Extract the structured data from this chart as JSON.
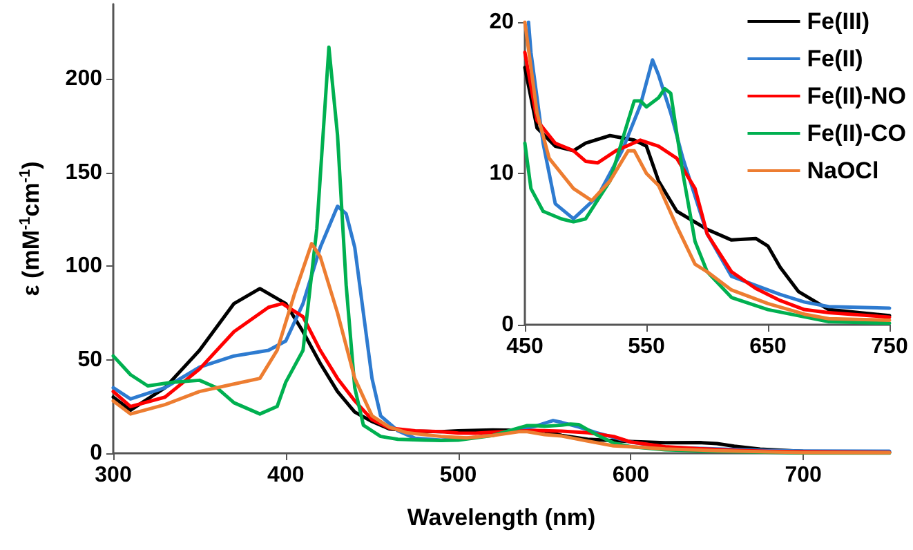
{
  "chart_data": [
    {
      "type": "line",
      "xlabel": "Wavelength (nm)",
      "ylabel": "ε (mM$^{-1}$cm$^{-1}$)",
      "xlim": [
        300,
        750
      ],
      "ylim": [
        0,
        240
      ],
      "xticks": [
        300,
        400,
        500,
        600,
        700
      ],
      "yticks": [
        0,
        50,
        100,
        150,
        200
      ],
      "grid": false,
      "legend": false,
      "line_style": "solid",
      "series": [
        {
          "color": "#000000",
          "x": [
            300,
            310,
            330,
            350,
            370,
            385,
            400,
            410,
            420,
            430,
            440,
            450,
            460,
            475,
            490,
            500,
            520,
            540,
            550,
            560,
            575,
            600,
            620,
            640,
            650,
            660,
            675,
            700,
            750
          ],
          "values": [
            30,
            23,
            35,
            55,
            80,
            88,
            80,
            65,
            48,
            33,
            22,
            17,
            13,
            11.8,
            11.5,
            12,
            12.5,
            12.2,
            11.8,
            9.5,
            7.5,
            6.3,
            5.6,
            5.7,
            5.2,
            3.8,
            2.2,
            1,
            0.6
          ]
        },
        {
          "color": "#2e7bd0",
          "x": [
            300,
            310,
            330,
            350,
            370,
            390,
            400,
            410,
            420,
            430,
            435,
            440,
            445,
            450,
            455,
            465,
            475,
            490,
            510,
            530,
            545,
            555,
            560,
            570,
            580,
            600,
            620,
            640,
            660,
            680,
            700,
            750
          ],
          "values": [
            35,
            29,
            35,
            46,
            52,
            55,
            60,
            80,
            110,
            132,
            128,
            110,
            75,
            40,
            20,
            12,
            8,
            7,
            8.5,
            11.5,
            14.5,
            17.5,
            16.5,
            14,
            11,
            6,
            3.2,
            2.6,
            2,
            1.5,
            1.2,
            1.1
          ]
        },
        {
          "color": "#ff0000",
          "x": [
            300,
            310,
            330,
            350,
            370,
            390,
            398,
            410,
            420,
            430,
            440,
            450,
            460,
            475,
            490,
            500,
            510,
            525,
            545,
            560,
            575,
            590,
            600,
            620,
            640,
            660,
            680,
            700,
            750
          ],
          "values": [
            33,
            25,
            30,
            45,
            65,
            78,
            80,
            73,
            55,
            40,
            28,
            18,
            13.5,
            12,
            11.5,
            10.8,
            10.7,
            11.5,
            12.2,
            11.8,
            11,
            9,
            6,
            3.5,
            2.4,
            1.6,
            1,
            0.8,
            0.5
          ]
        },
        {
          "color": "#00b050",
          "x": [
            300,
            310,
            320,
            335,
            350,
            360,
            370,
            385,
            395,
            400,
            410,
            418,
            425,
            430,
            435,
            440,
            445,
            450,
            455,
            465,
            480,
            490,
            500,
            520,
            535,
            540,
            545,
            550,
            560,
            565,
            570,
            580,
            590,
            600,
            620,
            650,
            700,
            750
          ],
          "values": [
            52,
            42,
            36,
            38,
            39,
            35,
            27,
            21,
            25,
            38,
            55,
            120,
            217,
            170,
            90,
            35,
            15,
            12,
            9,
            7.5,
            7,
            6.8,
            7,
            9.5,
            13.5,
            14.8,
            14.8,
            14.4,
            15,
            15.6,
            15.3,
            10,
            5.5,
            3.5,
            1.8,
            1,
            0.2,
            0.1
          ]
        },
        {
          "color": "#ed7d31",
          "x": [
            300,
            310,
            330,
            350,
            370,
            385,
            395,
            405,
            415,
            420,
            430,
            440,
            450,
            460,
            470,
            490,
            505,
            520,
            535,
            540,
            550,
            560,
            575,
            590,
            600,
            620,
            650,
            680,
            700,
            750
          ],
          "values": [
            28,
            21,
            26,
            33,
            37,
            40,
            55,
            85,
            112,
            105,
            75,
            40,
            20,
            14,
            11,
            9,
            8.2,
            9.5,
            11.5,
            11.5,
            10,
            9.2,
            6.5,
            4,
            3.5,
            2.3,
            1.4,
            0.7,
            0.4,
            0.3
          ]
        }
      ]
    },
    {
      "type": "line",
      "xlim": [
        450,
        750
      ],
      "ylim": [
        0,
        20
      ],
      "xticks": [
        450,
        550,
        650,
        750
      ],
      "yticks": [
        0,
        10,
        20
      ],
      "grid": false,
      "legend": "top right",
      "line_style": "solid",
      "series": [
        {
          "name": "Fe(III)",
          "color": "#000000",
          "x": [
            450,
            460,
            475,
            490,
            500,
            520,
            540,
            550,
            560,
            575,
            600,
            620,
            640,
            650,
            660,
            675,
            700,
            750
          ],
          "values": [
            17,
            13,
            11.8,
            11.5,
            12,
            12.5,
            12.2,
            11.8,
            9.5,
            7.5,
            6.3,
            5.6,
            5.7,
            5.2,
            3.8,
            2.2,
            1,
            0.6
          ]
        },
        {
          "name": "Fe(II)",
          "color": "#2e7bd0",
          "x": [
            453,
            455,
            465,
            475,
            490,
            510,
            530,
            545,
            555,
            560,
            570,
            580,
            600,
            620,
            640,
            660,
            680,
            700,
            750
          ],
          "values": [
            20,
            18,
            12,
            8,
            7,
            8.5,
            11.5,
            14.5,
            17.5,
            16.5,
            14,
            11,
            6,
            3.2,
            2.6,
            2,
            1.5,
            1.2,
            1.1
          ]
        },
        {
          "name": "Fe(II)-NO",
          "color": "#ff0000",
          "x": [
            450,
            460,
            475,
            490,
            500,
            510,
            525,
            545,
            560,
            575,
            590,
            600,
            620,
            640,
            660,
            680,
            700,
            750
          ],
          "values": [
            18,
            13.5,
            12,
            11.5,
            10.8,
            10.7,
            11.5,
            12.2,
            11.8,
            11,
            9,
            6,
            3.5,
            2.4,
            1.6,
            1,
            0.8,
            0.5
          ]
        },
        {
          "name": "Fe(II)-CO",
          "color": "#00b050",
          "x": [
            450,
            455,
            465,
            480,
            490,
            500,
            520,
            535,
            540,
            545,
            550,
            560,
            565,
            570,
            580,
            590,
            600,
            620,
            650,
            700,
            750
          ],
          "values": [
            12,
            9,
            7.5,
            7,
            6.8,
            7,
            9.5,
            13.5,
            14.8,
            14.8,
            14.4,
            15,
            15.6,
            15.3,
            10,
            5.5,
            3.5,
            1.8,
            1,
            0.2,
            0.1
          ]
        },
        {
          "name": "NaOCl",
          "color": "#ed7d31",
          "x": [
            450,
            460,
            470,
            490,
            505,
            520,
            535,
            540,
            550,
            560,
            575,
            590,
            600,
            620,
            650,
            680,
            700,
            750
          ],
          "values": [
            20,
            14,
            11,
            9,
            8.2,
            9.5,
            11.5,
            11.5,
            10,
            9.2,
            6.5,
            4,
            3.5,
            2.3,
            1.4,
            0.7,
            0.4,
            0.3
          ]
        }
      ]
    }
  ]
}
